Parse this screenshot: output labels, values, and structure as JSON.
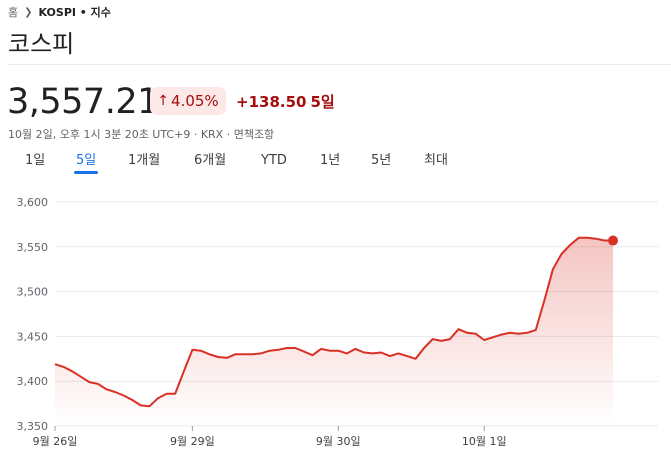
{
  "breadcrumb": {
    "home": "홈",
    "path": "KOSPI • 지수"
  },
  "title": "코스피",
  "quote": {
    "price": "3,557.21",
    "change_pct": "4.05%",
    "change_abs": "+138.50",
    "period_label": "5일",
    "meta": "10월 2일, 오후 1시 3분 20초 UTC+9 · KRX · 면책조항"
  },
  "tabs": [
    {
      "label": "1일"
    },
    {
      "label": "5일",
      "active": true
    },
    {
      "label": "1개월"
    },
    {
      "label": "6개월"
    },
    {
      "label": "YTD"
    },
    {
      "label": "1년"
    },
    {
      "label": "5년"
    },
    {
      "label": "최대"
    }
  ],
  "colors": {
    "down": "#a50e0e",
    "line": "#d93025",
    "accent": "#1a73e8"
  },
  "icons": {
    "breadcrumb_separator": "chevron-right-icon",
    "change": "arrow-up-icon"
  },
  "chart_data": {
    "type": "area",
    "ylim": [
      3350,
      3600
    ],
    "yticks": [
      3350,
      3400,
      3450,
      3500,
      3550,
      3600
    ],
    "ytick_labels": [
      "3,350",
      "3,400",
      "3,450",
      "3,500",
      "3,550",
      "3,600"
    ],
    "xtick_labels": [
      {
        "label": "9월 26일",
        "index": 0
      },
      {
        "label": "9월 29일",
        "index": 16
      },
      {
        "label": "9월 30일",
        "index": 33
      },
      {
        "label": "10월 1일",
        "index": 50
      }
    ],
    "grid": true,
    "values": [
      3419,
      3416,
      3411,
      3405,
      3399,
      3397,
      3391,
      3388,
      3384,
      3379,
      3373,
      3372,
      3381,
      3386,
      3386,
      3411,
      3435,
      3434,
      3430,
      3427,
      3426,
      3430,
      3430,
      3430,
      3431,
      3434,
      3435,
      3437,
      3437,
      3433,
      3429,
      3436,
      3434,
      3434,
      3431,
      3436,
      3432,
      3431,
      3432,
      3428,
      3431,
      3428,
      3425,
      3437,
      3447,
      3445,
      3447,
      3458,
      3454,
      3453,
      3446,
      3449,
      3452,
      3454,
      3453,
      3454,
      3457,
      3490,
      3525,
      3542,
      3552,
      3560,
      3560,
      3559,
      3557,
      3557
    ]
  }
}
